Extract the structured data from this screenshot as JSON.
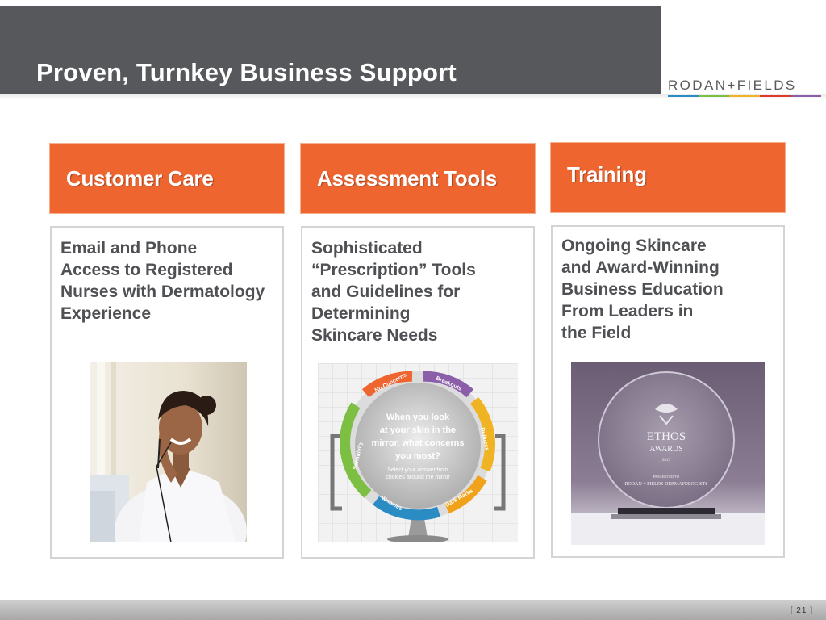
{
  "slide": {
    "title": "Proven, Turnkey Business Support",
    "page_number": "[ 21 ]"
  },
  "logo": {
    "text": "RODAN+FIELDS",
    "stripe_colors": [
      "#2b8cc4",
      "#7cbf42",
      "#f0b323",
      "#e2372b",
      "#8a5ea8"
    ]
  },
  "columns": [
    {
      "heading": "Customer Care",
      "body": "Email and Phone\nAccess to Registered\nNurses with Dermatology\nExperience",
      "image": "customer-service-agent-photo"
    },
    {
      "heading": "Assessment Tools",
      "body": "Sophisticated\n“Prescription” Tools\nand Guidelines for\nDetermining\nSkincare Needs",
      "image": "skin-concern-mirror-wheel",
      "mirror": {
        "question": "When you look at your skin in the mirror, what concerns you most?",
        "instruction": "Select your answer from choices around the mirror",
        "segments": [
          "No Concerns",
          "Breakouts",
          "Dullness",
          "Dark Marks",
          "Wrinkles",
          "Sensitivity"
        ]
      }
    },
    {
      "heading": "Training",
      "body": "Ongoing Skincare\nand Award-Winning\nBusiness Education\nFrom Leaders in\nthe Field",
      "image": "ethos-award-trophy",
      "award": {
        "name": "ETHOS",
        "line2": "AWARDS",
        "year": "2013",
        "presented": "PRESENTED TO",
        "recipient": "RODAN + FIELDS DERMATOLOGISTS"
      }
    }
  ],
  "colors": {
    "accent_orange": "#ef6530",
    "title_bar_gray": "#57585b",
    "body_text": "#4f5054"
  }
}
